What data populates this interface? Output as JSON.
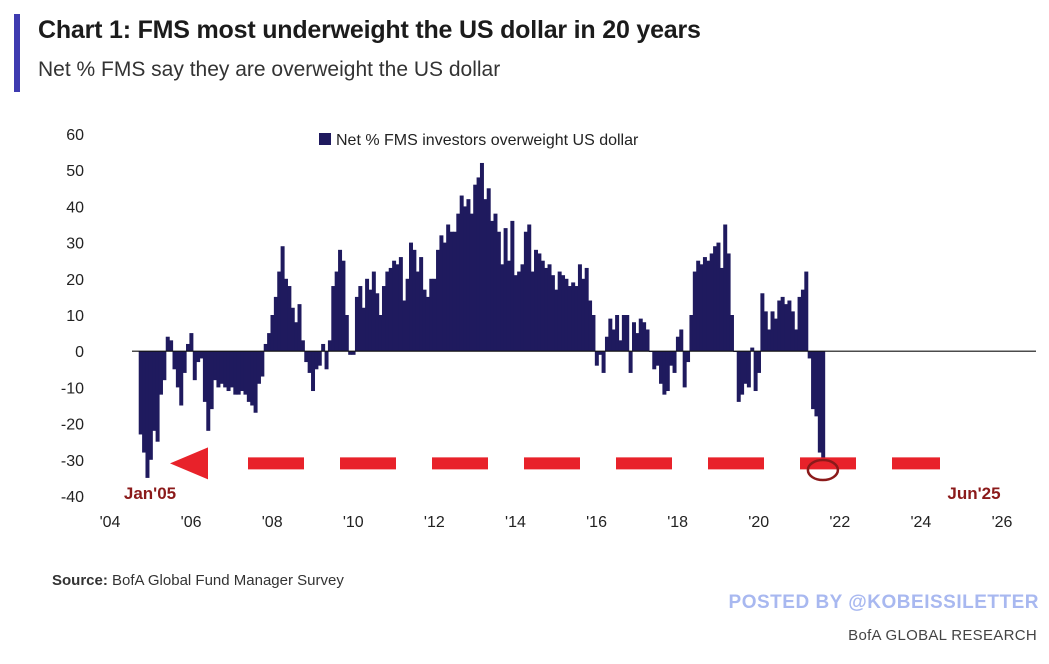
{
  "header": {
    "title": "Chart 1: FMS most underweight the US dollar in 20 years",
    "subtitle": "Net % FMS say they are overweight the US dollar"
  },
  "footer": {
    "source_label": "Source:",
    "source_text": "BofA Global Fund Manager Survey",
    "posted_by": "POSTED BY @KOBEISSILETTER",
    "brand": "BofA GLOBAL RESEARCH"
  },
  "colors": {
    "bar": "#1f1a5e",
    "annotation": "#e8222a",
    "callout_text": "#8b1a1a"
  },
  "chart_data": {
    "type": "bar",
    "title": "Chart 1: FMS most underweight the US dollar in 20 years",
    "ylabel": "Net % FMS say they are overweight the US dollar",
    "xlabel": "",
    "ylim": [
      -40,
      60
    ],
    "yticks": [
      60,
      50,
      40,
      30,
      20,
      10,
      0,
      -10,
      -20,
      -30,
      -40
    ],
    "xlim": [
      2004,
      2026
    ],
    "xticks": [
      {
        "value": 2004,
        "label": "'04"
      },
      {
        "value": 2006,
        "label": "'06"
      },
      {
        "value": 2008,
        "label": "'08"
      },
      {
        "value": 2010,
        "label": "'10"
      },
      {
        "value": 2012,
        "label": "'12"
      },
      {
        "value": 2014,
        "label": "'14"
      },
      {
        "value": 2016,
        "label": "'16"
      },
      {
        "value": 2018,
        "label": "'18"
      },
      {
        "value": 2020,
        "label": "'20"
      },
      {
        "value": 2022,
        "label": "'22"
      },
      {
        "value": 2024,
        "label": "'24"
      },
      {
        "value": 2026,
        "label": "'26"
      }
    ],
    "legend": {
      "label": "Net % FMS investors overweight US dollar",
      "position": "top-center"
    },
    "start": 2004.75,
    "step": 0.08333,
    "series": [
      {
        "name": "Net % FMS investors overweight US dollar",
        "values": [
          -23,
          -28,
          -35,
          -30,
          -22,
          -25,
          -12,
          -8,
          4,
          3,
          -5,
          -10,
          -15,
          -6,
          2,
          5,
          -8,
          -3,
          -2,
          -14,
          -22,
          -16,
          -8,
          -10,
          -9,
          -10,
          -11,
          -10,
          -12,
          -12,
          -11,
          -12,
          -14,
          -15,
          -17,
          -9,
          -7,
          2,
          5,
          10,
          15,
          22,
          29,
          20,
          18,
          12,
          8,
          13,
          3,
          -3,
          -6,
          -11,
          -5,
          -4,
          2,
          -5,
          3,
          18,
          22,
          28,
          25,
          10,
          -1,
          -1,
          15,
          18,
          12,
          20,
          17,
          22,
          16,
          10,
          18,
          22,
          23,
          25,
          24,
          26,
          14,
          20,
          30,
          28,
          22,
          26,
          17,
          15,
          20,
          20,
          28,
          32,
          30,
          35,
          33,
          33,
          38,
          43,
          40,
          42,
          38,
          46,
          48,
          52,
          42,
          45,
          36,
          38,
          33,
          24,
          34,
          25,
          36,
          21,
          22,
          24,
          33,
          35,
          22,
          28,
          27,
          25,
          23,
          24,
          21,
          17,
          22,
          21,
          20,
          18,
          19,
          18,
          24,
          20,
          23,
          14,
          10,
          -4,
          -1,
          -6,
          4,
          9,
          6,
          10,
          3,
          10,
          10,
          -6,
          8,
          5,
          9,
          8,
          6,
          0,
          -5,
          -4,
          -9,
          -12,
          -11,
          -4,
          -6,
          4,
          6,
          -10,
          -3,
          10,
          22,
          25,
          24,
          26,
          25,
          27,
          29,
          30,
          23,
          35,
          27,
          10,
          0,
          -14,
          -12,
          -9,
          -10,
          1,
          -11,
          -6,
          16,
          11,
          6,
          11,
          9,
          14,
          15,
          13,
          14,
          11,
          6,
          15,
          17,
          22,
          -2,
          -16,
          -18,
          -28,
          -32
        ]
      }
    ],
    "annotations": {
      "start_label": "Jan'05",
      "end_label": "Jun'25",
      "arrow_level": -31
    }
  }
}
